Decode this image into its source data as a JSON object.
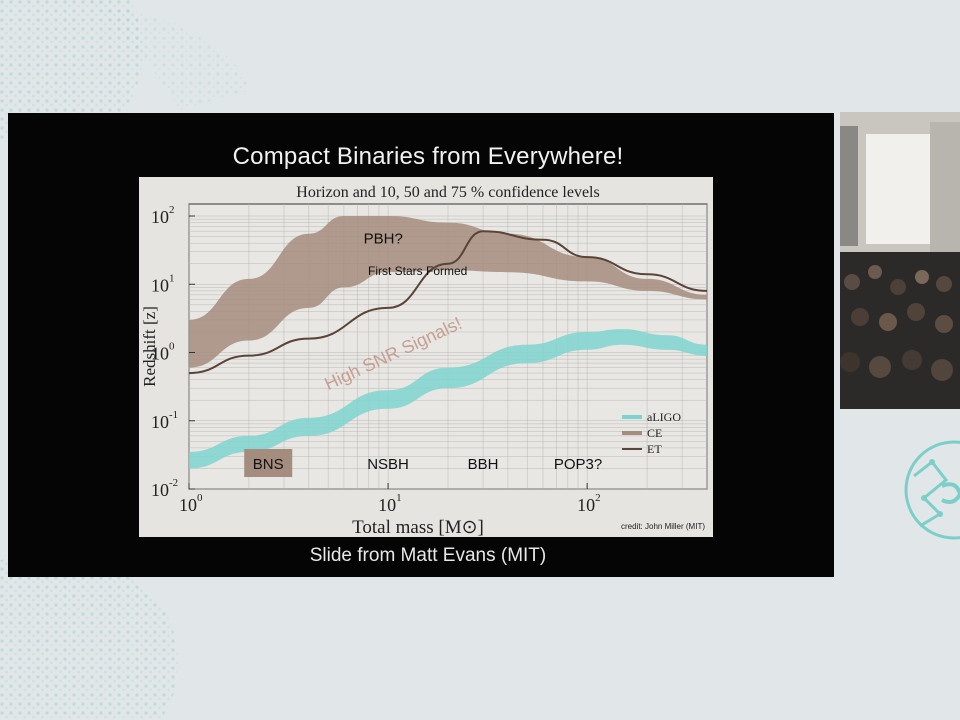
{
  "slide": {
    "title": "Compact Binaries from Everywhere!",
    "footer": "Slide from Matt Evans (MIT)"
  },
  "chart_data": {
    "type": "area",
    "title": "Horizon and 10, 50 and 75 % confidence levels",
    "xlabel": "Total mass [M⊙]",
    "ylabel": "Redshift [z]",
    "x_scale": "log",
    "y_scale": "log",
    "xlim": [
      1,
      400
    ],
    "ylim": [
      0.01,
      150
    ],
    "grid": true,
    "x_ticks": [
      {
        "value": 1,
        "base": "10",
        "exp": "0"
      },
      {
        "value": 10,
        "base": "10",
        "exp": "1"
      },
      {
        "value": 100,
        "base": "10",
        "exp": "2"
      }
    ],
    "y_ticks": [
      {
        "value": 0.01,
        "base": "10",
        "exp": "-2"
      },
      {
        "value": 0.1,
        "base": "10",
        "exp": "-1"
      },
      {
        "value": 1,
        "base": "10",
        "exp": "0"
      },
      {
        "value": 10,
        "base": "10",
        "exp": "1"
      },
      {
        "value": 100,
        "base": "10",
        "exp": "2"
      }
    ],
    "legend": {
      "placement": "bottom-right",
      "entries": [
        {
          "name": "aLIGO",
          "color": "#7fd3cf"
        },
        {
          "name": "CE",
          "color": "#a48c7e"
        },
        {
          "name": "ET",
          "color": "#5a4337"
        }
      ]
    },
    "series": [
      {
        "name": "CE",
        "color": "#a48c7e",
        "x": [
          1,
          2,
          4,
          6,
          10,
          20,
          40,
          100,
          200,
          400
        ],
        "upper": [
          3,
          12,
          55,
          100,
          100,
          80,
          55,
          25,
          12,
          7
        ],
        "lower": [
          0.6,
          1.5,
          4.5,
          9,
          15,
          16,
          15,
          11,
          8,
          6
        ]
      },
      {
        "name": "ET",
        "color": "#5a4337",
        "x": [
          1,
          2,
          4,
          10,
          20,
          30,
          60,
          100,
          200,
          400
        ],
        "values": [
          0.5,
          0.9,
          1.6,
          4.5,
          20,
          60,
          45,
          25,
          14,
          8
        ]
      },
      {
        "name": "aLIGO",
        "color": "#7fd3cf",
        "x": [
          1,
          2,
          4,
          10,
          20,
          50,
          100,
          150,
          250,
          400
        ],
        "upper": [
          0.035,
          0.06,
          0.11,
          0.28,
          0.6,
          1.3,
          2.0,
          2.2,
          1.8,
          1.3
        ],
        "lower": [
          0.02,
          0.035,
          0.06,
          0.15,
          0.3,
          0.7,
          1.1,
          1.3,
          1.1,
          0.9
        ]
      }
    ],
    "annotations": [
      {
        "text": "PBH?",
        "x": 9.5,
        "y": 50,
        "kind": "label"
      },
      {
        "text": "First Stars Formed",
        "x": 20,
        "y": 18,
        "kind": "label"
      },
      {
        "text": "High SNR Signals!",
        "x": 10,
        "y": 1,
        "kind": "rotated"
      }
    ],
    "category_boxes": [
      {
        "text": "BNS",
        "x": 2.5
      },
      {
        "text": "NSBH",
        "x": 10
      },
      {
        "text": "BBH",
        "x": 30
      },
      {
        "text": "POP3?",
        "x": 90
      }
    ],
    "credit": "credit: John Miller (MIT)"
  }
}
